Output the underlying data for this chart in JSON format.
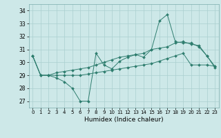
{
  "xlabel": "Humidex (Indice chaleur)",
  "bg_color": "#cde8e8",
  "grid_color": "#aacfcf",
  "line_color": "#2e7d6e",
  "xlim": [
    -0.5,
    23.5
  ],
  "ylim": [
    26.5,
    34.5
  ],
  "yticks": [
    27,
    28,
    29,
    30,
    31,
    32,
    33,
    34
  ],
  "xticks": [
    0,
    1,
    2,
    3,
    4,
    5,
    6,
    7,
    8,
    9,
    10,
    11,
    12,
    13,
    14,
    15,
    16,
    17,
    18,
    19,
    20,
    21,
    22,
    23
  ],
  "series": [
    [
      30.5,
      29.0,
      29.0,
      28.8,
      28.5,
      28.0,
      27.0,
      27.0,
      30.7,
      29.8,
      29.5,
      30.1,
      30.4,
      30.6,
      30.4,
      31.0,
      33.2,
      33.7,
      31.6,
      31.5,
      31.5,
      31.2,
      30.5,
      29.6
    ],
    [
      30.5,
      29.0,
      29.0,
      29.0,
      29.0,
      29.0,
      29.0,
      29.1,
      29.2,
      29.3,
      29.4,
      29.5,
      29.6,
      29.7,
      29.8,
      29.9,
      30.1,
      30.3,
      30.5,
      30.7,
      29.8,
      29.8,
      29.8,
      29.7
    ],
    [
      30.5,
      29.0,
      29.0,
      29.2,
      29.3,
      29.4,
      29.5,
      29.6,
      29.8,
      30.0,
      30.2,
      30.4,
      30.5,
      30.6,
      30.7,
      31.0,
      31.1,
      31.2,
      31.5,
      31.6,
      31.4,
      31.3,
      30.5,
      29.7
    ]
  ]
}
